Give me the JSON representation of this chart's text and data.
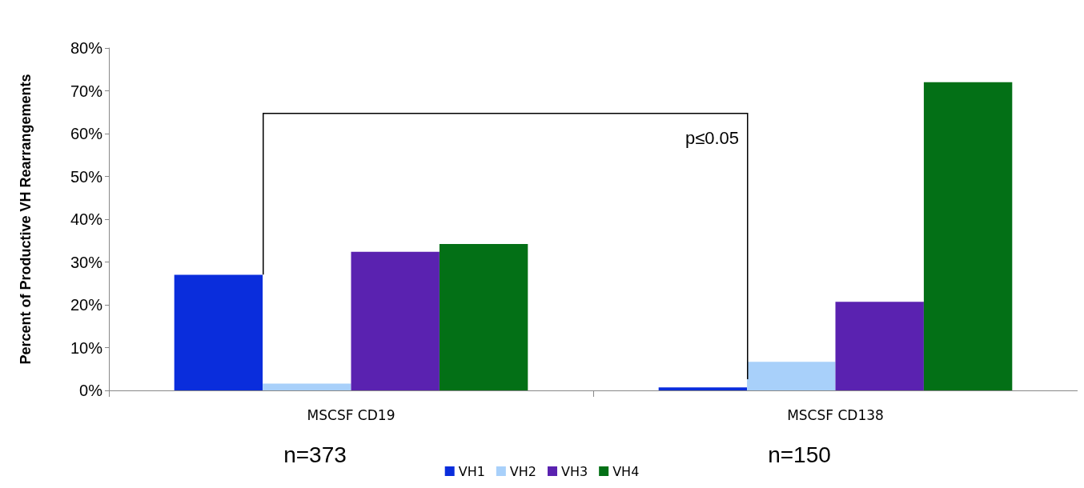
{
  "chart_data": {
    "type": "bar",
    "ylabel": "Percent of Productive VH Rearrangements",
    "categories": [
      "MSCSF CD19",
      "MSCSF CD138"
    ],
    "series": [
      {
        "name": "VH1",
        "color": "#0a2ddc",
        "values": [
          27,
          0.7
        ]
      },
      {
        "name": "VH2",
        "color": "#a8d0fa",
        "values": [
          1.6,
          6.7
        ]
      },
      {
        "name": "VH3",
        "color": "#5a22b0",
        "values": [
          32.4,
          20.7
        ]
      },
      {
        "name": "VH4",
        "color": "#037016",
        "values": [
          34.2,
          72
        ]
      }
    ],
    "ylim": [
      0,
      80
    ],
    "yticks": [
      {
        "value": 0,
        "label": "0%"
      },
      {
        "value": 10,
        "label": "10%"
      },
      {
        "value": 20,
        "label": "20%"
      },
      {
        "value": 30,
        "label": "30%"
      },
      {
        "value": 40,
        "label": "40%"
      },
      {
        "value": 50,
        "label": "50%"
      },
      {
        "value": 60,
        "label": "60%"
      },
      {
        "value": 70,
        "label": "70%"
      },
      {
        "value": 80,
        "label": "80%"
      }
    ],
    "grid": false,
    "legend": "bottom",
    "annotations": [
      "p≤0.05",
      "n=373",
      "n=150"
    ]
  }
}
